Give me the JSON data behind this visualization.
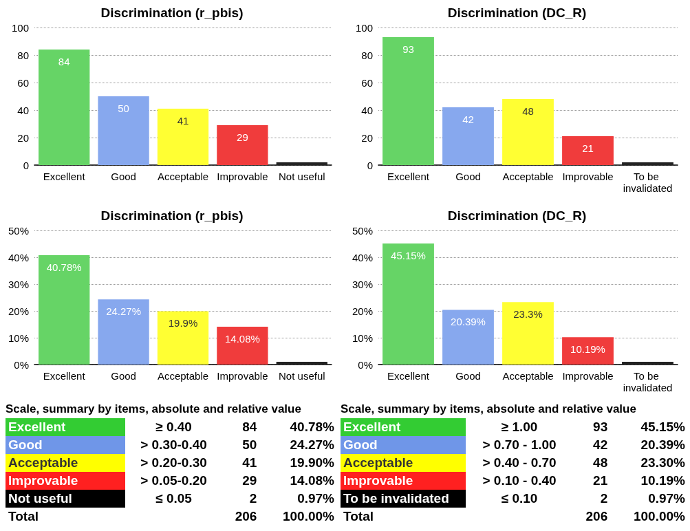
{
  "chart_data": [
    {
      "type": "bar",
      "title": "Discrimination (r_pbis)",
      "categories": [
        "Excellent",
        "Good",
        "Acceptable",
        "Improvable",
        "Not useful"
      ],
      "values": [
        84,
        50,
        41,
        29,
        2
      ],
      "colors": [
        "#66d466",
        "#87a8ee",
        "#ffff33",
        "#f03c3c",
        "#222222"
      ],
      "value_labels": [
        "84",
        "50",
        "41",
        "29",
        null
      ],
      "ylim": [
        0,
        100
      ],
      "yticks": [
        0,
        20,
        40,
        60,
        80,
        100
      ],
      "grid": "y",
      "line_style": "dotted"
    },
    {
      "type": "bar",
      "title": "Discrimination (DC_R)",
      "categories": [
        "Excellent",
        "Good",
        "Acceptable",
        "Improvable",
        "To be invalidated"
      ],
      "values": [
        93,
        42,
        48,
        21,
        2
      ],
      "colors": [
        "#66d466",
        "#87a8ee",
        "#ffff33",
        "#f03c3c",
        "#222222"
      ],
      "value_labels": [
        "93",
        "42",
        "48",
        "21",
        null
      ],
      "ylim": [
        0,
        100
      ],
      "yticks": [
        0,
        20,
        40,
        60,
        80,
        100
      ],
      "grid": "y",
      "line_style": "dotted"
    },
    {
      "type": "bar",
      "title": "Discrimination (r_pbis)",
      "categories": [
        "Excellent",
        "Good",
        "Acceptable",
        "Improvable",
        "Not useful"
      ],
      "values": [
        40.78,
        24.27,
        19.9,
        14.08,
        1
      ],
      "colors": [
        "#66d466",
        "#87a8ee",
        "#ffff33",
        "#f03c3c",
        "#222222"
      ],
      "value_labels": [
        "40.78%",
        "24.27%",
        "19.9%",
        "14.08%",
        null
      ],
      "ylim": [
        0,
        50
      ],
      "yticks": [
        {
          "value": 0,
          "label": "0%"
        },
        {
          "value": 10,
          "label": "10%"
        },
        {
          "value": 20,
          "label": "20%"
        },
        {
          "value": 30,
          "label": "30%"
        },
        {
          "value": 40,
          "label": "40%"
        },
        {
          "value": 50,
          "label": "50%"
        }
      ],
      "grid": "y",
      "line_style": "dotted"
    },
    {
      "type": "bar",
      "title": "Discrimination (DC_R)",
      "categories": [
        "Excellent",
        "Good",
        "Acceptable",
        "Improvable",
        "To be invalidated"
      ],
      "values": [
        45.15,
        20.39,
        23.3,
        10.19,
        1
      ],
      "colors": [
        "#66d466",
        "#87a8ee",
        "#ffff33",
        "#f03c3c",
        "#222222"
      ],
      "value_labels": [
        "45.15%",
        "20.39%",
        "23.3%",
        "10.19%",
        null
      ],
      "ylim": [
        0,
        50
      ],
      "yticks": [
        {
          "value": 0,
          "label": "0%"
        },
        {
          "value": 10,
          "label": "10%"
        },
        {
          "value": 20,
          "label": "20%"
        },
        {
          "value": 30,
          "label": "30%"
        },
        {
          "value": 40,
          "label": "40%"
        },
        {
          "value": 50,
          "label": "50%"
        }
      ],
      "grid": "y",
      "line_style": "dotted"
    },
    {
      "type": "other",
      "title": "Scale, summary by items, absolute and relative value",
      "categories": [
        "Excellent",
        "Good",
        "Acceptable",
        "Improvable",
        "Not useful",
        "Total"
      ],
      "colors": [
        "#33cc33",
        "#6f96e8",
        "#ffff00",
        "#ff2020",
        "#000000",
        null
      ],
      "annotations": [
        "≥ 0.40",
        "> 0.30-0.40",
        "> 0.20-0.30",
        "> 0.05-0.20",
        "≤ 0.05",
        "84",
        "50",
        "41",
        "29",
        "2",
        "206",
        "40.78%",
        "24.27%",
        "19.90%",
        "14.08%",
        "0.97%",
        "100.00%"
      ]
    },
    {
      "type": "other",
      "title": "Scale, summary by items, absolute and relative value",
      "categories": [
        "Excellent",
        "Good",
        "Acceptable",
        "Improvable",
        "To be invalidated",
        "Total"
      ],
      "colors": [
        "#33cc33",
        "#6f96e8",
        "#ffff00",
        "#ff2020",
        "#000000",
        null
      ],
      "annotations": [
        "≥ 1.00",
        "> 0.70 - 1.00",
        "> 0.40 - 0.70",
        "> 0.10 - 0.40",
        "≤ 0.10",
        "93",
        "42",
        "48",
        "21",
        "2",
        "206",
        "45.15%",
        "20.39%",
        "23.30%",
        "10.19%",
        "0.97%",
        "100.00%"
      ]
    }
  ]
}
